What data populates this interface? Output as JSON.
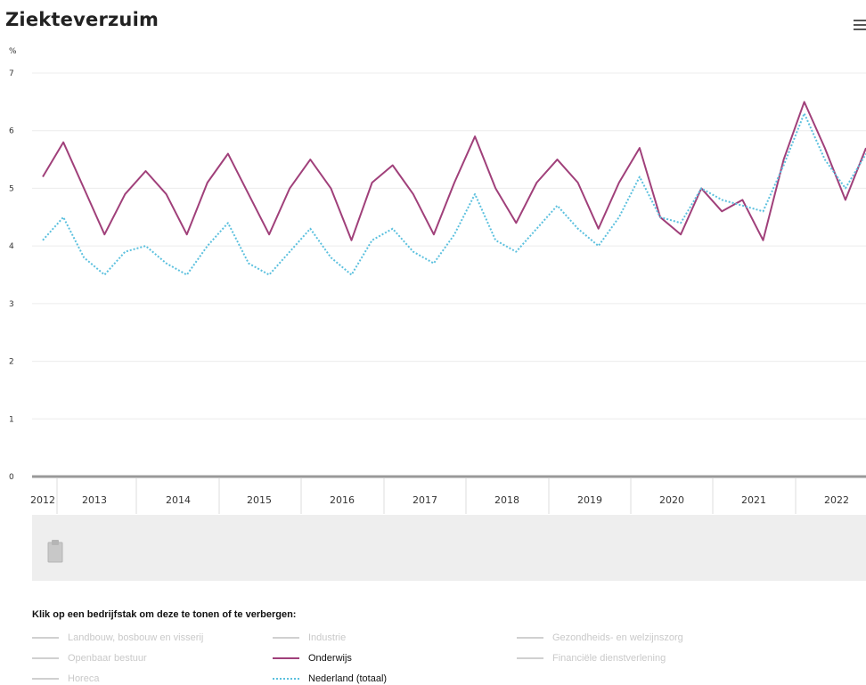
{
  "title": "Ziekteverzuim",
  "menu_icon": "hamburger-menu-icon",
  "chart_data": {
    "type": "line",
    "title": "Ziekteverzuim",
    "ylabel": "%",
    "ylim": [
      0,
      7
    ],
    "yticks": [
      "0",
      "1",
      "2",
      "3",
      "4",
      "5",
      "6",
      "7"
    ],
    "xticks": [
      "2012",
      "2013",
      "2014",
      "2015",
      "2016",
      "2017",
      "2018",
      "2019",
      "2020",
      "2021",
      "2022"
    ],
    "grid": true,
    "legend_position": "bottom",
    "series": [
      {
        "name": "Onderwijs",
        "color": "#a0407a",
        "style": "solid",
        "values": [
          5.2,
          5.8,
          5.0,
          4.2,
          4.9,
          5.3,
          4.9,
          4.2,
          5.1,
          5.6,
          4.9,
          4.2,
          5.0,
          5.5,
          5.0,
          4.1,
          5.1,
          5.4,
          4.9,
          4.2,
          5.1,
          5.9,
          5.0,
          4.4,
          5.1,
          5.5,
          5.1,
          4.3,
          5.1,
          5.7,
          4.5,
          4.2,
          5.0,
          4.6,
          4.8,
          4.1,
          5.5,
          6.5,
          5.7,
          4.8,
          5.7
        ]
      },
      {
        "name": "Nederland (totaal)",
        "color": "#5bc0de",
        "style": "dotted",
        "values": [
          4.1,
          4.5,
          3.8,
          3.5,
          3.9,
          4.0,
          3.7,
          3.5,
          4.0,
          4.4,
          3.7,
          3.5,
          3.9,
          4.3,
          3.8,
          3.5,
          4.1,
          4.3,
          3.9,
          3.7,
          4.2,
          4.9,
          4.1,
          3.9,
          4.3,
          4.7,
          4.3,
          4.0,
          4.5,
          5.2,
          4.5,
          4.4,
          5.0,
          4.8,
          4.7,
          4.6,
          5.4,
          6.3,
          5.5,
          5.0,
          5.6
        ]
      }
    ]
  },
  "legend": {
    "title": "Klik op een bedrijfstak om deze te tonen of te verbergen:",
    "items": [
      {
        "label": "Landbouw, bosbouw en visserij"
      },
      {
        "label": "Industrie"
      },
      {
        "label": "Gezondheids- en welzijnszorg"
      },
      {
        "label": "Openbaar bestuur"
      },
      {
        "label": "Onderwijs",
        "active": true
      },
      {
        "label": "Financiële dienstverlening"
      },
      {
        "label": "Horeca"
      },
      {
        "label": "Nederland (totaal)",
        "active": true
      }
    ]
  }
}
